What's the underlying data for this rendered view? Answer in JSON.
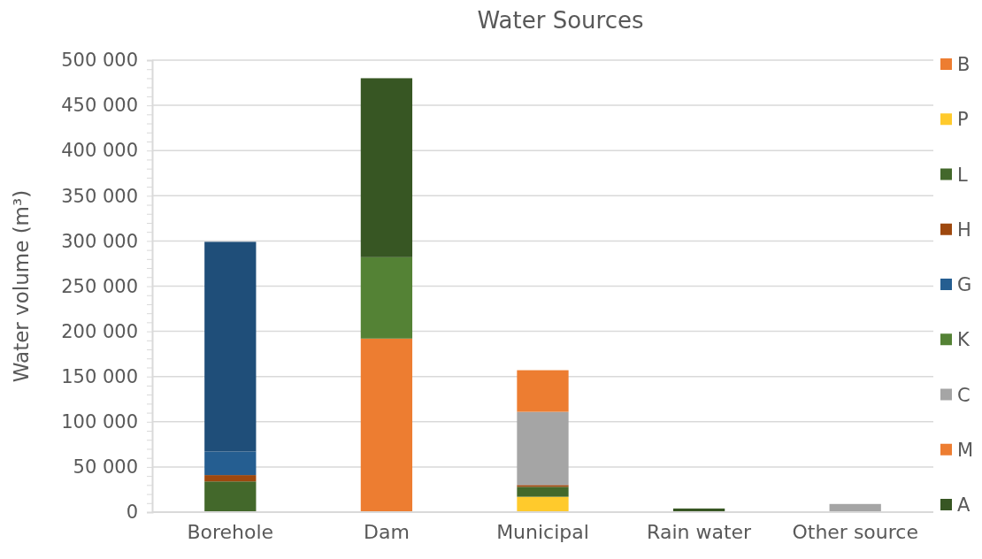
{
  "chart_data": {
    "type": "bar",
    "title": "Water Sources",
    "ylabel": "Water volume (m³)",
    "stacked": true,
    "grid": "y",
    "legend": "right",
    "categories": [
      "Borehole",
      "Dam",
      "Municipal",
      "Rain water",
      "Other source"
    ],
    "ylim": [
      0,
      500000
    ],
    "yticks": [
      {
        "value": 0,
        "label": "0"
      },
      {
        "value": 10000,
        "label": null
      },
      {
        "value": 20000,
        "label": null
      },
      {
        "value": 30000,
        "label": null
      },
      {
        "value": 40000,
        "label": null
      },
      {
        "value": 50000,
        "label": "50 000"
      },
      {
        "value": 60000,
        "label": null
      },
      {
        "value": 70000,
        "label": null
      },
      {
        "value": 80000,
        "label": null
      },
      {
        "value": 90000,
        "label": null
      },
      {
        "value": 100000,
        "label": "100 000"
      },
      {
        "value": 110000,
        "label": null
      },
      {
        "value": 120000,
        "label": null
      },
      {
        "value": 130000,
        "label": null
      },
      {
        "value": 140000,
        "label": null
      },
      {
        "value": 150000,
        "label": "150 000"
      },
      {
        "value": 160000,
        "label": null
      },
      {
        "value": 170000,
        "label": null
      },
      {
        "value": 180000,
        "label": null
      },
      {
        "value": 190000,
        "label": null
      },
      {
        "value": 200000,
        "label": "200 000"
      },
      {
        "value": 210000,
        "label": null
      },
      {
        "value": 220000,
        "label": null
      },
      {
        "value": 230000,
        "label": null
      },
      {
        "value": 240000,
        "label": null
      },
      {
        "value": 250000,
        "label": "250 000"
      },
      {
        "value": 260000,
        "label": null
      },
      {
        "value": 270000,
        "label": null
      },
      {
        "value": 280000,
        "label": null
      },
      {
        "value": 290000,
        "label": null
      },
      {
        "value": 300000,
        "label": "300 000"
      },
      {
        "value": 310000,
        "label": null
      },
      {
        "value": 320000,
        "label": null
      },
      {
        "value": 330000,
        "label": null
      },
      {
        "value": 340000,
        "label": null
      },
      {
        "value": 350000,
        "label": "350 000"
      },
      {
        "value": 360000,
        "label": null
      },
      {
        "value": 370000,
        "label": null
      },
      {
        "value": 380000,
        "label": null
      },
      {
        "value": 390000,
        "label": null
      },
      {
        "value": 400000,
        "label": "400 000"
      },
      {
        "value": 410000,
        "label": null
      },
      {
        "value": 420000,
        "label": null
      },
      {
        "value": 430000,
        "label": null
      },
      {
        "value": 440000,
        "label": null
      },
      {
        "value": 450000,
        "label": "450 000"
      },
      {
        "value": 460000,
        "label": null
      },
      {
        "value": 470000,
        "label": null
      },
      {
        "value": 480000,
        "label": null
      },
      {
        "value": 490000,
        "label": null
      },
      {
        "value": 500000,
        "label": "500 000"
      }
    ],
    "series": [
      {
        "name": "B",
        "color": "#ed7d31",
        "values": [
          null,
          192000,
          null,
          null,
          null
        ]
      },
      {
        "name": "P",
        "color": "#ffca2c",
        "values": [
          null,
          null,
          17000,
          null,
          null
        ]
      },
      {
        "name": "L",
        "color": "#43682b",
        "values": [
          34000,
          null,
          11000,
          null,
          null
        ]
      },
      {
        "name": "H",
        "color": "#9e480e",
        "values": [
          7000,
          null,
          2000,
          null,
          null
        ]
      },
      {
        "name": "G",
        "color": "#255e91",
        "values": [
          26000,
          null,
          null,
          null,
          null
        ]
      },
      {
        "name": "K",
        "color": "#548235",
        "values": [
          null,
          90000,
          null,
          null,
          null
        ]
      },
      {
        "name": "C",
        "color": "#a5a5a5",
        "values": [
          null,
          null,
          81000,
          null,
          9000
        ]
      },
      {
        "name": "M",
        "color": "#ed7d31",
        "values": [
          null,
          null,
          46000,
          null,
          null
        ]
      },
      {
        "name": "A",
        "color": "#375623",
        "values": [
          null,
          198000,
          null,
          4000,
          null
        ]
      },
      {
        "color": "#1f4e79",
        "values": [
          232000,
          null,
          null,
          null,
          null
        ]
      }
    ]
  }
}
